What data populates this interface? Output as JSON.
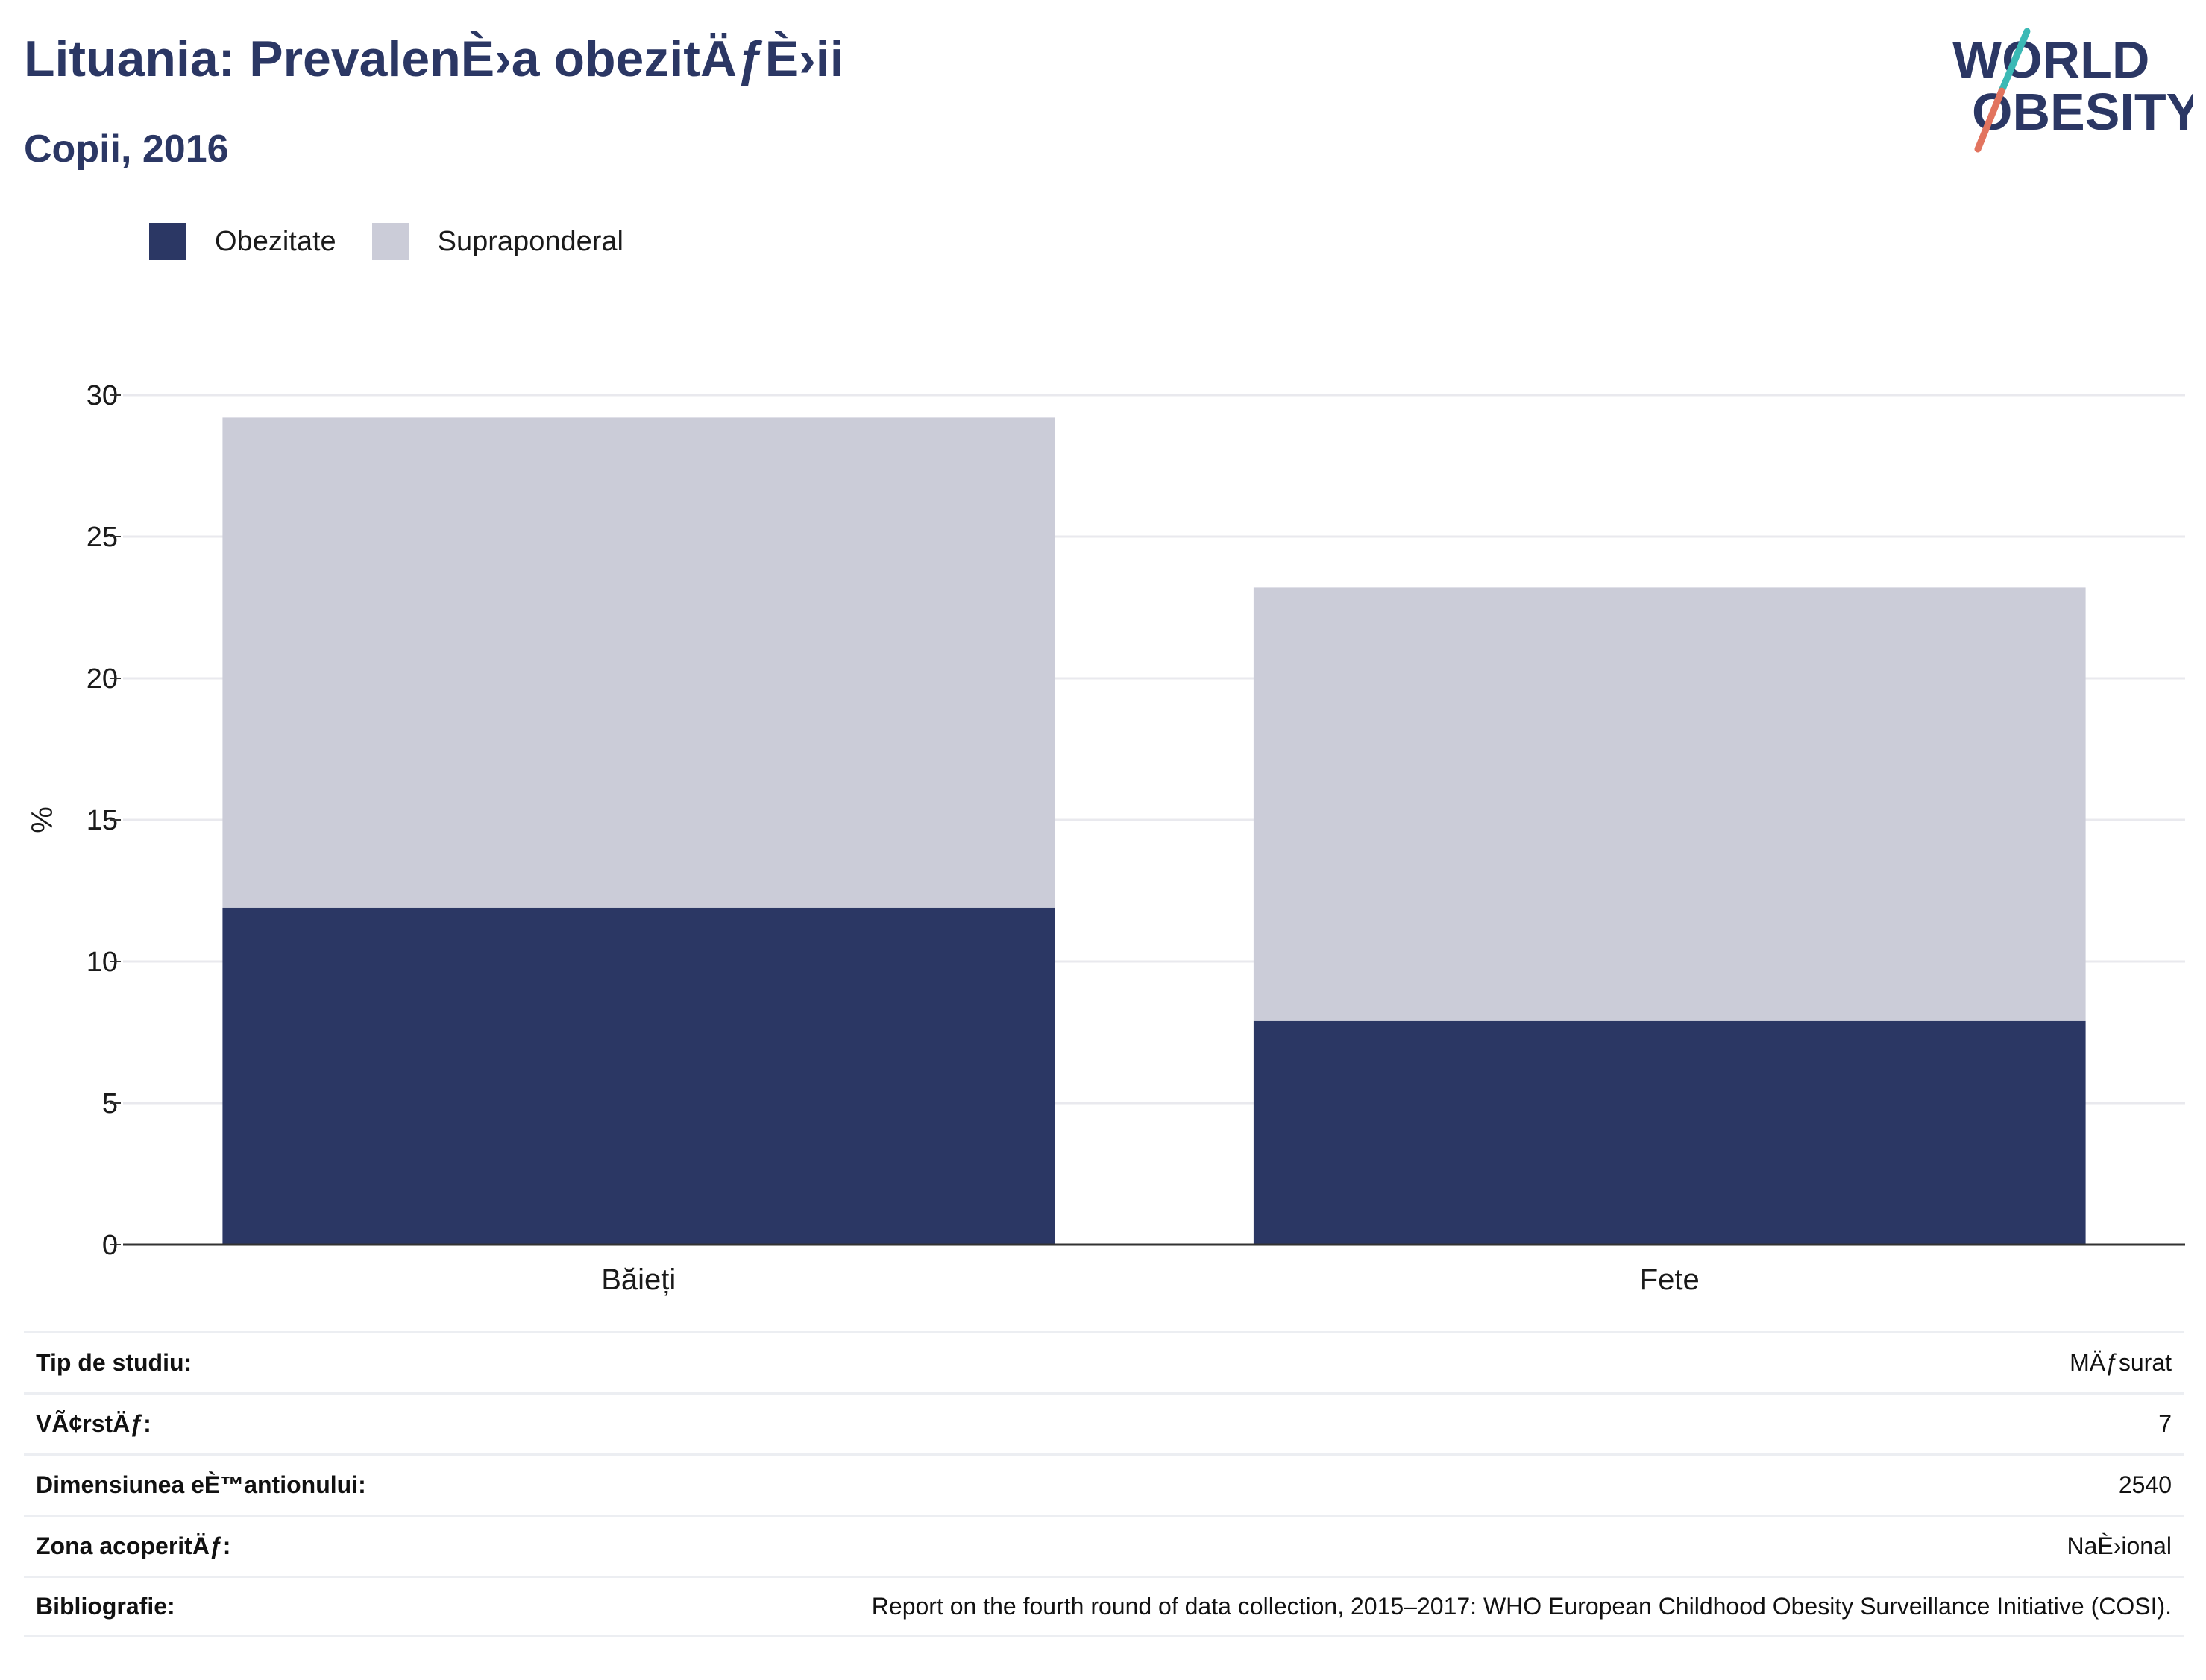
{
  "title": "Lituania: PrevalenÈ›a obezitÄƒÈ›ii",
  "subtitle": "Copii, 2016",
  "logo": {
    "line1": "WORLD",
    "line2": "OBESITY"
  },
  "colors": {
    "obesity": "#2b3764",
    "overweight": "#cbccd8",
    "title": "#2b3764",
    "grid": "#e9e9ee"
  },
  "chart_data": {
    "type": "bar",
    "stacked": true,
    "categories": [
      "Băieți",
      "Fete"
    ],
    "series": [
      {
        "name": "Obezitate",
        "values": [
          11.9,
          7.9
        ],
        "color": "#2b3764"
      },
      {
        "name": "Supraponderal",
        "values": [
          17.3,
          15.3
        ],
        "color": "#cbccd8"
      }
    ],
    "ylabel": "%",
    "ylim": [
      0,
      30
    ],
    "yticks": [
      0,
      5,
      10,
      15,
      20,
      25,
      30
    ],
    "grid": true,
    "legend": "top-left"
  },
  "info": [
    {
      "key": "Tip de studiu:",
      "value": "MÄƒsurat"
    },
    {
      "key": "VÃ¢rstÄƒ:",
      "value": "7"
    },
    {
      "key": "Dimensiunea eÈ™antionului:",
      "value": "2540"
    },
    {
      "key": "Zona acoperitÄƒ:",
      "value": "NaÈ›ional"
    },
    {
      "key": "Bibliografie:",
      "value": "Report on the fourth round of data collection, 2015–2017: WHO European Childhood Obesity Surveillance Initiative (COSI)."
    }
  ]
}
